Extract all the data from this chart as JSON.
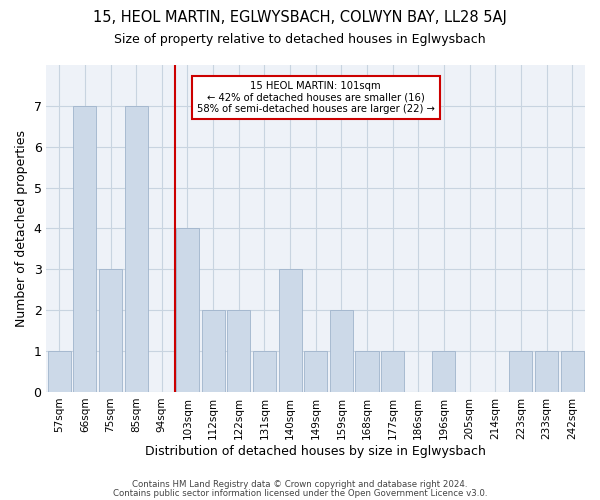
{
  "title_line1": "15, HEOL MARTIN, EGLWYSBACH, COLWYN BAY, LL28 5AJ",
  "title_line2": "Size of property relative to detached houses in Eglwysbach",
  "xlabel": "Distribution of detached houses by size in Eglwysbach",
  "ylabel": "Number of detached properties",
  "categories": [
    "57sqm",
    "66sqm",
    "75sqm",
    "85sqm",
    "94sqm",
    "103sqm",
    "112sqm",
    "122sqm",
    "131sqm",
    "140sqm",
    "149sqm",
    "159sqm",
    "168sqm",
    "177sqm",
    "186sqm",
    "196sqm",
    "205sqm",
    "214sqm",
    "223sqm",
    "233sqm",
    "242sqm"
  ],
  "values": [
    1,
    7,
    3,
    7,
    0,
    4,
    2,
    2,
    1,
    3,
    1,
    2,
    1,
    1,
    0,
    1,
    0,
    0,
    1,
    1,
    1
  ],
  "bar_color": "#ccd9e8",
  "bar_edgecolor": "#a0b4cc",
  "marker_bin_index": 5,
  "marker_label_line1": "15 HEOL MARTIN: 101sqm",
  "marker_label_line2": "← 42% of detached houses are smaller (16)",
  "marker_label_line3": "58% of semi-detached houses are larger (22) →",
  "marker_color": "#cc0000",
  "annotation_box_edgecolor": "#cc0000",
  "grid_color": "#c8d4e0",
  "background_color": "#eef2f8",
  "footnote_line1": "Contains HM Land Registry data © Crown copyright and database right 2024.",
  "footnote_line2": "Contains public sector information licensed under the Open Government Licence v3.0.",
  "ylim": [
    0,
    8
  ],
  "yticks": [
    0,
    1,
    2,
    3,
    4,
    5,
    6,
    7
  ]
}
